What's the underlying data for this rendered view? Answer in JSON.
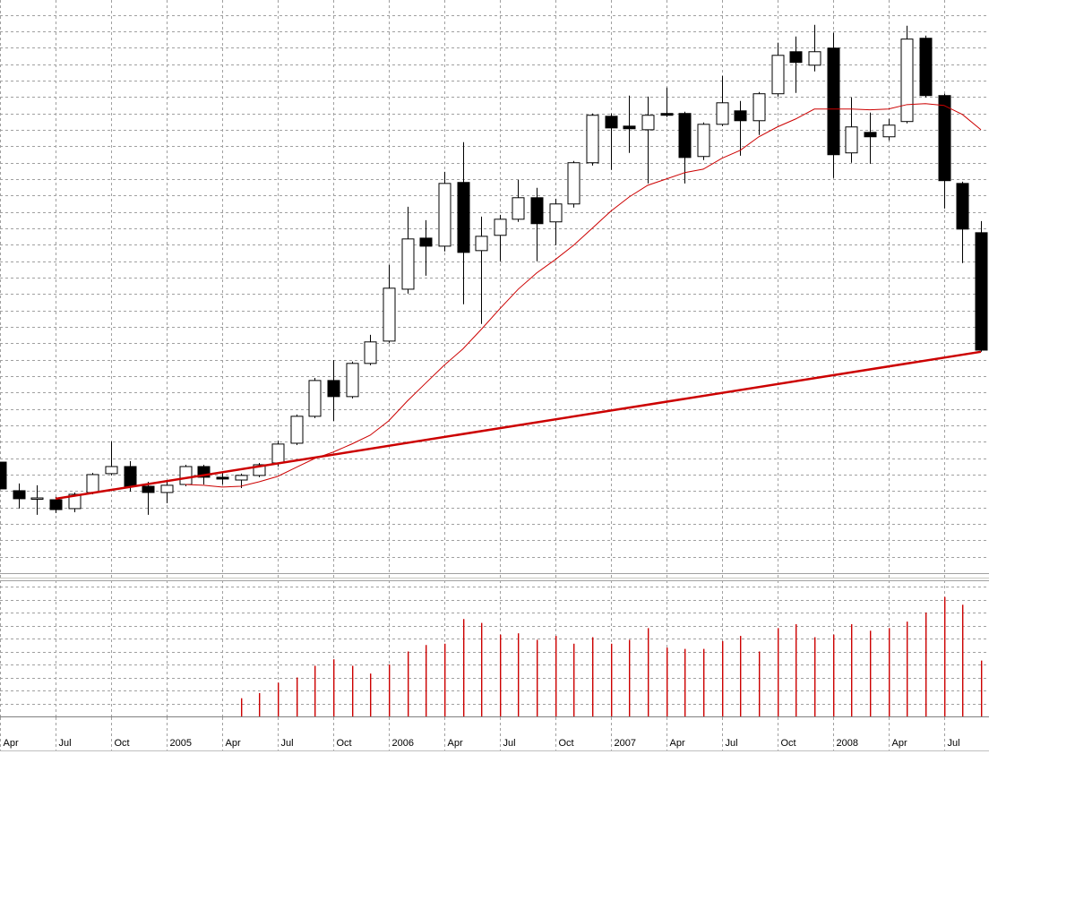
{
  "chart_data": [
    {
      "type": "candlestick",
      "categories": [
        "Apr",
        null,
        null,
        "Jul",
        null,
        null,
        "Oct",
        null,
        null,
        "2005",
        null,
        null,
        "Apr",
        null,
        null,
        "Jul",
        null,
        null,
        "Oct",
        null,
        null,
        "2006",
        null,
        null,
        "Apr",
        null,
        null,
        "Jul",
        null,
        null,
        "Oct",
        null,
        null,
        "2007",
        null,
        null,
        "Apr",
        null,
        null,
        "Jul",
        null,
        null,
        "Oct",
        null,
        null,
        "2008",
        null,
        null,
        "Apr",
        null,
        null,
        "Jul",
        null,
        null
      ],
      "open": [
        6.76,
        5.02,
        4.53,
        4.47,
        3.93,
        4.91,
        6.06,
        6.49,
        5.29,
        4.91,
        5.4,
        6.49,
        5.84,
        5.67,
        5.95,
        6.71,
        7.91,
        9.55,
        11.73,
        10.75,
        12.77,
        14.13,
        17.29,
        20.4,
        19.91,
        23.79,
        19.64,
        20.57,
        21.55,
        22.86,
        21.39,
        22.48,
        24.99,
        27.82,
        27.22,
        27.0,
        27.99,
        27.99,
        25.37,
        27.33,
        28.15,
        27.55,
        29.19,
        31.75,
        30.93,
        31.97,
        25.59,
        26.84,
        26.57,
        27.5,
        32.57,
        29.08,
        23.73,
        20.73
      ],
      "high": [
        6.76,
        5.46,
        5.35,
        4.64,
        4.91,
        6.11,
        8.02,
        6.82,
        5.56,
        5.56,
        6.6,
        6.6,
        6.16,
        6.06,
        6.71,
        8.07,
        9.66,
        11.89,
        12.98,
        12.88,
        14.51,
        18.77,
        22.31,
        21.49,
        24.44,
        26.24,
        21.71,
        21.82,
        23.95,
        23.46,
        22.8,
        25.1,
        27.99,
        27.99,
        29.08,
        29.02,
        29.57,
        28.1,
        27.44,
        30.28,
        28.75,
        29.3,
        32.3,
        32.68,
        33.39,
        32.9,
        28.97,
        28.04,
        27.66,
        33.33,
        32.73,
        29.19,
        23.84,
        21.44
      ],
      "low": [
        5.13,
        3.93,
        3.55,
        3.66,
        3.71,
        4.8,
        5.95,
        4.96,
        3.55,
        4.26,
        5.29,
        5.4,
        5.4,
        5.18,
        5.84,
        6.49,
        7.8,
        9.44,
        9.27,
        10.64,
        12.66,
        14.02,
        17.02,
        18.11,
        19.59,
        16.37,
        15.17,
        18.99,
        21.39,
        18.99,
        19.97,
        22.26,
        24.82,
        24.55,
        25.59,
        23.73,
        27.77,
        23.73,
        25.15,
        27.22,
        25.42,
        26.68,
        29.02,
        29.24,
        30.55,
        24.06,
        24.99,
        24.93,
        26.35,
        27.39,
        28.97,
        22.2,
        18.88,
        13.48
      ],
      "close": [
        5.13,
        4.53,
        4.58,
        3.87,
        4.8,
        6.0,
        6.49,
        5.29,
        4.91,
        5.35,
        6.49,
        5.84,
        5.73,
        5.95,
        6.6,
        7.86,
        9.55,
        11.73,
        10.75,
        12.77,
        14.08,
        17.35,
        20.35,
        19.91,
        23.73,
        19.53,
        20.51,
        21.55,
        22.86,
        21.28,
        22.48,
        24.99,
        27.88,
        27.11,
        27.06,
        27.88,
        27.88,
        25.31,
        27.33,
        28.64,
        27.55,
        29.19,
        31.53,
        31.1,
        31.75,
        25.48,
        27.17,
        26.57,
        27.28,
        32.52,
        29.08,
        23.9,
        20.95,
        13.58
      ],
      "up_color": "#ffffff",
      "down_color": "#000000",
      "ylim": [
        0,
        34.9
      ],
      "yticks": [
        1,
        2,
        3,
        4,
        5,
        6,
        7,
        8,
        9,
        10,
        11,
        12,
        13,
        14,
        15,
        16,
        17,
        18,
        19,
        20,
        21,
        22,
        23,
        24,
        25,
        26,
        27,
        28,
        29,
        30,
        31,
        32,
        33,
        34
      ],
      "grid": true,
      "overlays": [
        {
          "type": "line",
          "color": "#cc0000",
          "line_width": 1,
          "values": [
            null,
            null,
            null,
            null,
            null,
            null,
            null,
            null,
            null,
            null,
            5.4,
            5.35,
            5.24,
            5.29,
            5.56,
            5.89,
            6.44,
            6.98,
            7.37,
            7.86,
            8.4,
            9.27,
            10.47,
            11.57,
            12.66,
            13.64,
            14.84,
            16.09,
            17.29,
            18.28,
            19.09,
            19.97,
            21.0,
            22.04,
            22.91,
            23.62,
            24.0,
            24.39,
            24.6,
            25.26,
            25.75,
            26.57,
            27.17,
            27.66,
            28.26,
            28.26,
            28.26,
            28.21,
            28.26,
            28.53,
            28.59,
            28.48,
            27.93,
            27.0
          ]
        },
        {
          "type": "line",
          "color": "#cc0000",
          "line_width": 2.5,
          "x": [
            3,
            53
          ],
          "values": [
            4.53,
            13.48
          ]
        }
      ]
    },
    {
      "type": "bar",
      "color": "#cc0000",
      "values": [
        null,
        null,
        null,
        null,
        null,
        null,
        null,
        null,
        null,
        null,
        null,
        null,
        null,
        1.4,
        1.8,
        2.6,
        3.0,
        3.9,
        4.4,
        3.9,
        3.3,
        4.0,
        5.0,
        5.5,
        5.6,
        7.5,
        7.2,
        6.3,
        6.4,
        5.9,
        6.2,
        5.6,
        6.1,
        5.6,
        5.9,
        6.8,
        5.3,
        5.2,
        5.2,
        5.8,
        6.2,
        5.0,
        6.8,
        7.1,
        6.1,
        6.3,
        7.1,
        6.6,
        6.8,
        7.3,
        8.0,
        9.2,
        8.6,
        4.3
      ],
      "ylim": [
        0,
        10
      ],
      "yticks": [
        1,
        2,
        3,
        4,
        5,
        6,
        7,
        8,
        9,
        10
      ],
      "grid": true
    }
  ]
}
